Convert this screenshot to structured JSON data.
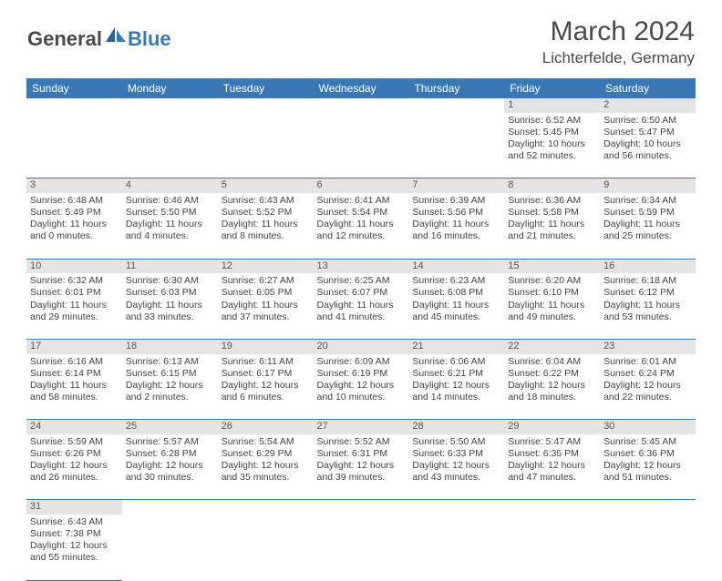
{
  "logo": {
    "general": "General",
    "blue": "Blue"
  },
  "title": "March 2024",
  "location": "Lichterfelde, Germany",
  "colors": {
    "header_bg": "#3a78b5",
    "header_fg": "#ffffff",
    "daynum_bg": "#e4e4e4",
    "border": "#3a78b5",
    "text": "#444"
  },
  "weekdays": [
    "Sunday",
    "Monday",
    "Tuesday",
    "Wednesday",
    "Thursday",
    "Friday",
    "Saturday"
  ],
  "weeks": [
    [
      null,
      null,
      null,
      null,
      null,
      {
        "n": "1",
        "sr": "Sunrise: 6:52 AM",
        "ss": "Sunset: 5:45 PM",
        "d1": "Daylight: 10 hours",
        "d2": "and 52 minutes."
      },
      {
        "n": "2",
        "sr": "Sunrise: 6:50 AM",
        "ss": "Sunset: 5:47 PM",
        "d1": "Daylight: 10 hours",
        "d2": "and 56 minutes."
      }
    ],
    [
      {
        "n": "3",
        "sr": "Sunrise: 6:48 AM",
        "ss": "Sunset: 5:49 PM",
        "d1": "Daylight: 11 hours",
        "d2": "and 0 minutes."
      },
      {
        "n": "4",
        "sr": "Sunrise: 6:46 AM",
        "ss": "Sunset: 5:50 PM",
        "d1": "Daylight: 11 hours",
        "d2": "and 4 minutes."
      },
      {
        "n": "5",
        "sr": "Sunrise: 6:43 AM",
        "ss": "Sunset: 5:52 PM",
        "d1": "Daylight: 11 hours",
        "d2": "and 8 minutes."
      },
      {
        "n": "6",
        "sr": "Sunrise: 6:41 AM",
        "ss": "Sunset: 5:54 PM",
        "d1": "Daylight: 11 hours",
        "d2": "and 12 minutes."
      },
      {
        "n": "7",
        "sr": "Sunrise: 6:39 AM",
        "ss": "Sunset: 5:56 PM",
        "d1": "Daylight: 11 hours",
        "d2": "and 16 minutes."
      },
      {
        "n": "8",
        "sr": "Sunrise: 6:36 AM",
        "ss": "Sunset: 5:58 PM",
        "d1": "Daylight: 11 hours",
        "d2": "and 21 minutes."
      },
      {
        "n": "9",
        "sr": "Sunrise: 6:34 AM",
        "ss": "Sunset: 5:59 PM",
        "d1": "Daylight: 11 hours",
        "d2": "and 25 minutes."
      }
    ],
    [
      {
        "n": "10",
        "sr": "Sunrise: 6:32 AM",
        "ss": "Sunset: 6:01 PM",
        "d1": "Daylight: 11 hours",
        "d2": "and 29 minutes."
      },
      {
        "n": "11",
        "sr": "Sunrise: 6:30 AM",
        "ss": "Sunset: 6:03 PM",
        "d1": "Daylight: 11 hours",
        "d2": "and 33 minutes."
      },
      {
        "n": "12",
        "sr": "Sunrise: 6:27 AM",
        "ss": "Sunset: 6:05 PM",
        "d1": "Daylight: 11 hours",
        "d2": "and 37 minutes."
      },
      {
        "n": "13",
        "sr": "Sunrise: 6:25 AM",
        "ss": "Sunset: 6:07 PM",
        "d1": "Daylight: 11 hours",
        "d2": "and 41 minutes."
      },
      {
        "n": "14",
        "sr": "Sunrise: 6:23 AM",
        "ss": "Sunset: 6:08 PM",
        "d1": "Daylight: 11 hours",
        "d2": "and 45 minutes."
      },
      {
        "n": "15",
        "sr": "Sunrise: 6:20 AM",
        "ss": "Sunset: 6:10 PM",
        "d1": "Daylight: 11 hours",
        "d2": "and 49 minutes."
      },
      {
        "n": "16",
        "sr": "Sunrise: 6:18 AM",
        "ss": "Sunset: 6:12 PM",
        "d1": "Daylight: 11 hours",
        "d2": "and 53 minutes."
      }
    ],
    [
      {
        "n": "17",
        "sr": "Sunrise: 6:16 AM",
        "ss": "Sunset: 6:14 PM",
        "d1": "Daylight: 11 hours",
        "d2": "and 58 minutes."
      },
      {
        "n": "18",
        "sr": "Sunrise: 6:13 AM",
        "ss": "Sunset: 6:15 PM",
        "d1": "Daylight: 12 hours",
        "d2": "and 2 minutes."
      },
      {
        "n": "19",
        "sr": "Sunrise: 6:11 AM",
        "ss": "Sunset: 6:17 PM",
        "d1": "Daylight: 12 hours",
        "d2": "and 6 minutes."
      },
      {
        "n": "20",
        "sr": "Sunrise: 6:09 AM",
        "ss": "Sunset: 6:19 PM",
        "d1": "Daylight: 12 hours",
        "d2": "and 10 minutes."
      },
      {
        "n": "21",
        "sr": "Sunrise: 6:06 AM",
        "ss": "Sunset: 6:21 PM",
        "d1": "Daylight: 12 hours",
        "d2": "and 14 minutes."
      },
      {
        "n": "22",
        "sr": "Sunrise: 6:04 AM",
        "ss": "Sunset: 6:22 PM",
        "d1": "Daylight: 12 hours",
        "d2": "and 18 minutes."
      },
      {
        "n": "23",
        "sr": "Sunrise: 6:01 AM",
        "ss": "Sunset: 6:24 PM",
        "d1": "Daylight: 12 hours",
        "d2": "and 22 minutes."
      }
    ],
    [
      {
        "n": "24",
        "sr": "Sunrise: 5:59 AM",
        "ss": "Sunset: 6:26 PM",
        "d1": "Daylight: 12 hours",
        "d2": "and 26 minutes."
      },
      {
        "n": "25",
        "sr": "Sunrise: 5:57 AM",
        "ss": "Sunset: 6:28 PM",
        "d1": "Daylight: 12 hours",
        "d2": "and 30 minutes."
      },
      {
        "n": "26",
        "sr": "Sunrise: 5:54 AM",
        "ss": "Sunset: 6:29 PM",
        "d1": "Daylight: 12 hours",
        "d2": "and 35 minutes."
      },
      {
        "n": "27",
        "sr": "Sunrise: 5:52 AM",
        "ss": "Sunset: 6:31 PM",
        "d1": "Daylight: 12 hours",
        "d2": "and 39 minutes."
      },
      {
        "n": "28",
        "sr": "Sunrise: 5:50 AM",
        "ss": "Sunset: 6:33 PM",
        "d1": "Daylight: 12 hours",
        "d2": "and 43 minutes."
      },
      {
        "n": "29",
        "sr": "Sunrise: 5:47 AM",
        "ss": "Sunset: 6:35 PM",
        "d1": "Daylight: 12 hours",
        "d2": "and 47 minutes."
      },
      {
        "n": "30",
        "sr": "Sunrise: 5:45 AM",
        "ss": "Sunset: 6:36 PM",
        "d1": "Daylight: 12 hours",
        "d2": "and 51 minutes."
      }
    ],
    [
      {
        "n": "31",
        "sr": "Sunrise: 6:43 AM",
        "ss": "Sunset: 7:38 PM",
        "d1": "Daylight: 12 hours",
        "d2": "and 55 minutes."
      },
      null,
      null,
      null,
      null,
      null,
      null
    ]
  ]
}
